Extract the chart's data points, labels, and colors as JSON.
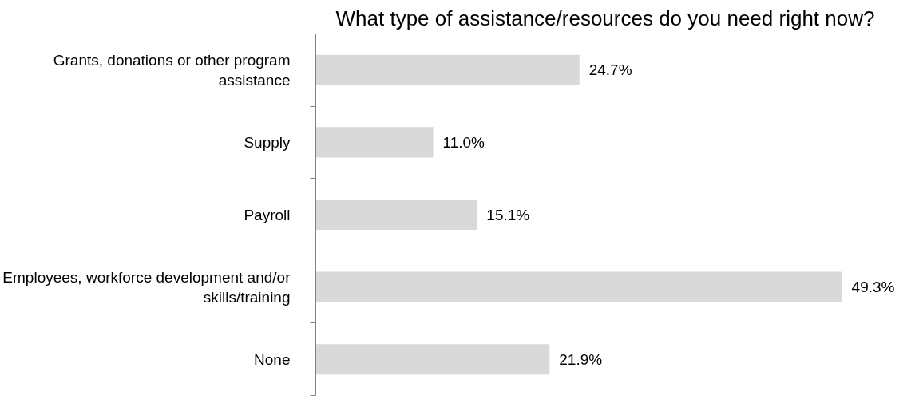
{
  "chart_data": {
    "type": "bar",
    "orientation": "horizontal",
    "title": "What type of assistance/resources do you need right now?",
    "categories": [
      "Grants, donations or other program assistance",
      "Supply",
      "Payroll",
      "Employees, workforce development and/or skills/training",
      "None"
    ],
    "values": [
      24.7,
      11.0,
      15.1,
      49.3,
      21.9
    ],
    "value_labels": [
      "24.7%",
      "11.0%",
      "15.1%",
      "49.3%",
      "21.9%"
    ],
    "color": "#d9d9d9",
    "grid": false,
    "tick_labels": "y"
  }
}
